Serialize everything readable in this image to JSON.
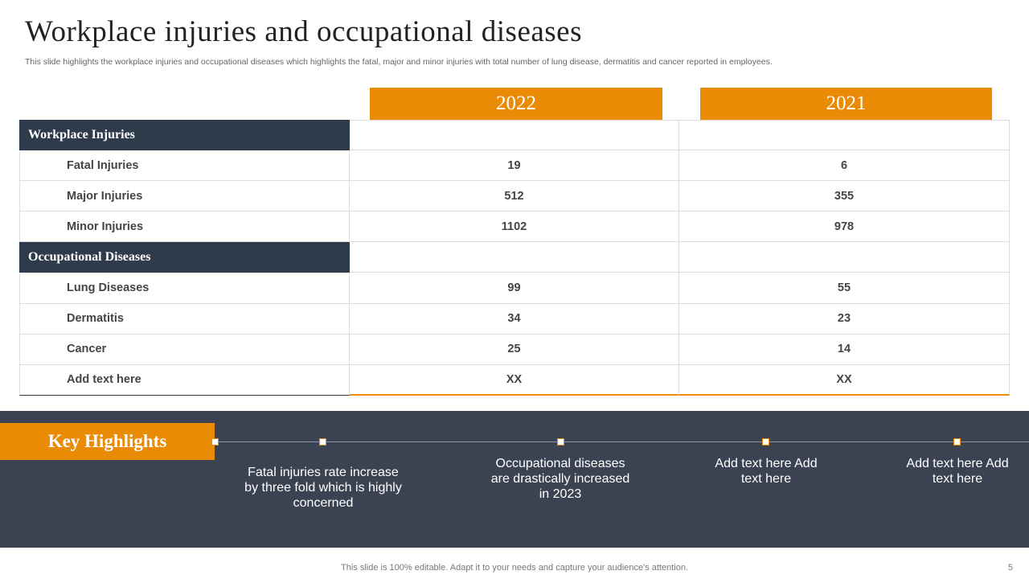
{
  "title": "Workplace injuries and occupational diseases",
  "subtitle": "This slide highlights the workplace injuries and occupational diseases which highlights the fatal,  major and minor injuries with total number of lung disease, dermatitis and cancer reported in employees.",
  "table": {
    "years": [
      "2022",
      "2021"
    ],
    "sections": [
      {
        "name": "Workplace Injuries",
        "rows": [
          {
            "label": "Fatal Injuries",
            "v2022": "19",
            "v2021": "6"
          },
          {
            "label": "Major Injuries",
            "v2022": "512",
            "v2021": "355"
          },
          {
            "label": "Minor Injuries",
            "v2022": "1102",
            "v2021": "978"
          }
        ]
      },
      {
        "name": "Occupational Diseases",
        "rows": [
          {
            "label": "Lung Diseases",
            "v2022": "99",
            "v2021": "55"
          },
          {
            "label": "Dermatitis",
            "v2022": "34",
            "v2021": "23"
          },
          {
            "label": "Cancer",
            "v2022": "25",
            "v2021": "14"
          },
          {
            "label": "Add  text here",
            "v2022": "XX",
            "v2021": "XX"
          }
        ]
      }
    ]
  },
  "highlights": {
    "label": "Key Highlights",
    "items": [
      {
        "text": "Fatal injuries rate increase by three fold which is highly concerned"
      },
      {
        "text": "Occupational diseases are drastically increased in 2023"
      },
      {
        "text": "Add text here Add text here"
      },
      {
        "text": "Add text here Add text here"
      }
    ]
  },
  "footer": "This slide is 100% editable. Adapt it to your needs and capture your audience's attention.",
  "page_number": "5",
  "colors": {
    "accent": "#E98B05",
    "dark": "#2E3B4B",
    "band": "#3B4352"
  }
}
